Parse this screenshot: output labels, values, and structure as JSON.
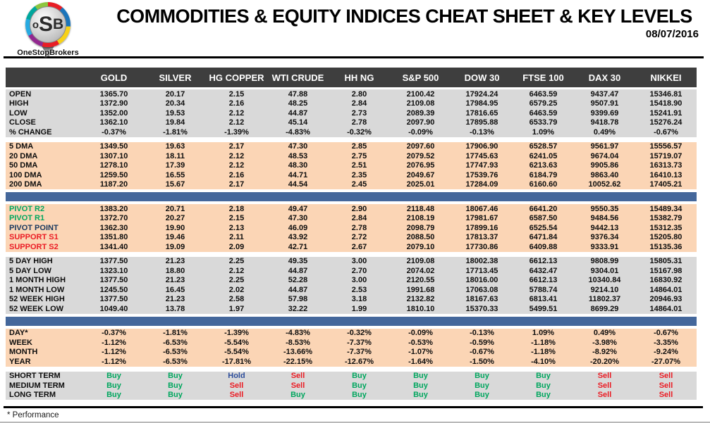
{
  "header": {
    "logo": {
      "o": "o",
      "s": "S",
      "b": "B"
    },
    "brand": "OneStopBrokers",
    "title": "COMMODITIES & EQUITY INDICES CHEAT SHEET & KEY LEVELS",
    "date": "08/07/2016"
  },
  "colors": {
    "header_bar": "#3E3E3E",
    "section_gray": "#D9D9D9",
    "section_peach": "#FBD5B5",
    "divider_blue": "#44679B",
    "pivot_resistance_label": "#00A65E",
    "pivot_point_label": "#17375E",
    "support_label": "#EB1C24",
    "signals": {
      "Buy": "#00A65E",
      "Sell": "#EB1C24",
      "Hold": "#2C4D9B"
    }
  },
  "table": {
    "columns": [
      "GOLD",
      "SILVER",
      "HG COPPER",
      "WTI CRUDE",
      "HH NG",
      "S&P 500",
      "DOW 30",
      "FTSE 100",
      "DAX 30",
      "NIKKEI"
    ],
    "sections": [
      {
        "name": "ohlc",
        "bg": "gray",
        "separator_after": "gap",
        "rows": [
          {
            "label": "OPEN",
            "values": [
              "1365.70",
              "20.17",
              "2.15",
              "47.88",
              "2.80",
              "2100.42",
              "17924.24",
              "6463.59",
              "9437.47",
              "15346.81"
            ]
          },
          {
            "label": "HIGH",
            "values": [
              "1372.90",
              "20.34",
              "2.16",
              "48.25",
              "2.84",
              "2109.08",
              "17984.95",
              "6579.25",
              "9507.91",
              "15418.90"
            ]
          },
          {
            "label": "LOW",
            "values": [
              "1352.00",
              "19.53",
              "2.12",
              "44.87",
              "2.73",
              "2089.39",
              "17816.65",
              "6463.59",
              "9399.69",
              "15241.91"
            ]
          },
          {
            "label": "CLOSE",
            "values": [
              "1362.10",
              "19.84",
              "2.12",
              "45.14",
              "2.78",
              "2097.90",
              "17895.88",
              "6533.79",
              "9418.78",
              "15276.24"
            ]
          },
          {
            "label": "% CHANGE",
            "values": [
              "-0.37%",
              "-1.81%",
              "-1.39%",
              "-4.83%",
              "-0.32%",
              "-0.09%",
              "-0.13%",
              "1.09%",
              "0.49%",
              "-0.67%"
            ]
          }
        ]
      },
      {
        "name": "moving-averages",
        "bg": "peach",
        "separator_after": "blue",
        "rows": [
          {
            "label": "5 DMA",
            "values": [
              "1349.50",
              "19.63",
              "2.17",
              "47.30",
              "2.85",
              "2097.60",
              "17906.90",
              "6528.57",
              "9561.97",
              "15556.57"
            ]
          },
          {
            "label": "20 DMA",
            "values": [
              "1307.10",
              "18.11",
              "2.12",
              "48.53",
              "2.75",
              "2079.52",
              "17745.63",
              "6241.05",
              "9674.04",
              "15719.07"
            ]
          },
          {
            "label": "50 DMA",
            "values": [
              "1278.10",
              "17.39",
              "2.12",
              "48.30",
              "2.51",
              "2076.95",
              "17747.93",
              "6213.63",
              "9905.86",
              "16313.73"
            ]
          },
          {
            "label": "100 DMA",
            "values": [
              "1259.50",
              "16.55",
              "2.16",
              "44.71",
              "2.35",
              "2049.67",
              "17539.76",
              "6184.79",
              "9863.40",
              "16410.13"
            ]
          },
          {
            "label": "200 DMA",
            "values": [
              "1187.20",
              "15.67",
              "2.17",
              "44.54",
              "2.45",
              "2025.01",
              "17284.09",
              "6160.60",
              "10052.62",
              "17405.21"
            ]
          }
        ]
      },
      {
        "name": "pivots",
        "bg": "peach",
        "separator_after": "gap",
        "rows": [
          {
            "label": "PIVOT R2",
            "label_color": "#00A65E",
            "values": [
              "1383.20",
              "20.71",
              "2.18",
              "49.47",
              "2.90",
              "2118.48",
              "18067.46",
              "6641.20",
              "9550.35",
              "15489.34"
            ]
          },
          {
            "label": "PIVOT R1",
            "label_color": "#00A65E",
            "values": [
              "1372.70",
              "20.27",
              "2.15",
              "47.30",
              "2.84",
              "2108.19",
              "17981.67",
              "6587.50",
              "9484.56",
              "15382.79"
            ]
          },
          {
            "label": "PIVOT POINT",
            "label_color": "#17375E",
            "values": [
              "1362.30",
              "19.90",
              "2.13",
              "46.09",
              "2.78",
              "2098.79",
              "17899.16",
              "6525.54",
              "9442.13",
              "15312.35"
            ]
          },
          {
            "label": "SUPPORT S1",
            "label_color": "#EB1C24",
            "values": [
              "1351.80",
              "19.46",
              "2.11",
              "43.92",
              "2.72",
              "2088.50",
              "17813.37",
              "6471.84",
              "9376.34",
              "15205.80"
            ]
          },
          {
            "label": "SUPPORT S2",
            "label_color": "#EB1C24",
            "values": [
              "1341.40",
              "19.09",
              "2.09",
              "42.71",
              "2.67",
              "2079.10",
              "17730.86",
              "6409.88",
              "9333.91",
              "15135.36"
            ]
          }
        ]
      },
      {
        "name": "ranges",
        "bg": "gray",
        "separator_after": "blue",
        "rows": [
          {
            "label": "5 DAY HIGH",
            "values": [
              "1377.50",
              "21.23",
              "2.25",
              "49.35",
              "3.00",
              "2109.08",
              "18002.38",
              "6612.13",
              "9808.99",
              "15805.31"
            ]
          },
          {
            "label": "5 DAY LOW",
            "values": [
              "1323.10",
              "18.80",
              "2.12",
              "44.87",
              "2.70",
              "2074.02",
              "17713.45",
              "6432.47",
              "9304.01",
              "15167.98"
            ]
          },
          {
            "label": "1 MONTH HIGH",
            "values": [
              "1377.50",
              "21.23",
              "2.25",
              "52.28",
              "3.00",
              "2120.55",
              "18016.00",
              "6612.13",
              "10340.84",
              "16830.92"
            ]
          },
          {
            "label": "1 MONTH LOW",
            "values": [
              "1245.50",
              "16.45",
              "2.02",
              "44.87",
              "2.53",
              "1991.68",
              "17063.08",
              "5788.74",
              "9214.10",
              "14864.01"
            ]
          },
          {
            "label": "52 WEEK HIGH",
            "values": [
              "1377.50",
              "21.23",
              "2.58",
              "57.98",
              "3.18",
              "2132.82",
              "18167.63",
              "6813.41",
              "11802.37",
              "20946.93"
            ]
          },
          {
            "label": "52 WEEK LOW",
            "values": [
              "1049.40",
              "13.78",
              "1.97",
              "32.22",
              "1.99",
              "1810.10",
              "15370.33",
              "5499.51",
              "8699.29",
              "14864.01"
            ]
          }
        ]
      },
      {
        "name": "performance",
        "bg": "peach",
        "separator_after": "gap",
        "rows": [
          {
            "label": "DAY*",
            "values": [
              "-0.37%",
              "-1.81%",
              "-1.39%",
              "-4.83%",
              "-0.32%",
              "-0.09%",
              "-0.13%",
              "1.09%",
              "0.49%",
              "-0.67%"
            ]
          },
          {
            "label": "WEEK",
            "values": [
              "-1.12%",
              "-6.53%",
              "-5.54%",
              "-8.53%",
              "-7.37%",
              "-0.53%",
              "-0.59%",
              "-1.18%",
              "-3.98%",
              "-3.35%"
            ]
          },
          {
            "label": "MONTH",
            "values": [
              "-1.12%",
              "-6.53%",
              "-5.54%",
              "-13.66%",
              "-7.37%",
              "-1.07%",
              "-0.67%",
              "-1.18%",
              "-8.92%",
              "-9.24%"
            ]
          },
          {
            "label": "YEAR",
            "values": [
              "-1.12%",
              "-6.53%",
              "-17.81%",
              "-22.15%",
              "-12.67%",
              "-1.64%",
              "-1.50%",
              "-4.10%",
              "-20.20%",
              "-27.07%"
            ]
          }
        ]
      },
      {
        "name": "signals",
        "bg": "gray",
        "type": "signals",
        "separator_after": "none",
        "rows": [
          {
            "label": "SHORT TERM",
            "values": [
              "Buy",
              "Buy",
              "Hold",
              "Sell",
              "Buy",
              "Buy",
              "Buy",
              "Buy",
              "Sell",
              "Sell"
            ]
          },
          {
            "label": "MEDIUM TERM",
            "values": [
              "Buy",
              "Buy",
              "Sell",
              "Sell",
              "Buy",
              "Buy",
              "Buy",
              "Buy",
              "Sell",
              "Sell"
            ]
          },
          {
            "label": "LONG TERM",
            "values": [
              "Buy",
              "Buy",
              "Sell",
              "Buy",
              "Buy",
              "Buy",
              "Buy",
              "Buy",
              "Sell",
              "Sell"
            ]
          }
        ]
      }
    ]
  },
  "footer": {
    "note": "* Performance"
  }
}
